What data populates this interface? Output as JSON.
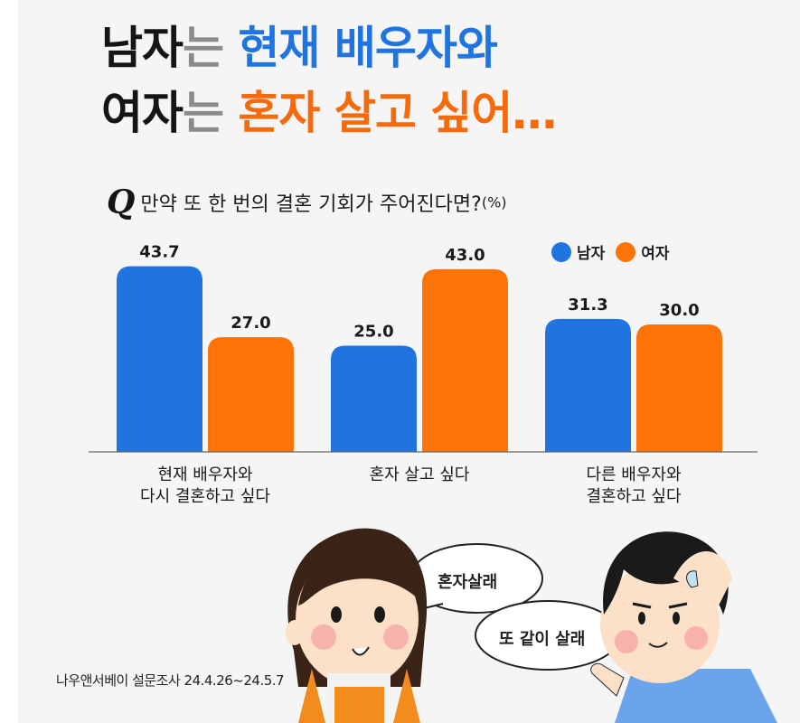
{
  "title": {
    "line1": {
      "part1": "남자",
      "part2": "는",
      "part3": "현재 배우자와"
    },
    "line2": {
      "part1": "여자",
      "part2": "는",
      "part3": "혼자 살고 싶어…"
    }
  },
  "question": {
    "mark": "Q",
    "text": "만약 또 한 번의 결혼 기회가 주어진다면?",
    "unit": "(%)"
  },
  "chart_data": {
    "type": "bar",
    "categories": [
      "현재 배우자와\n다시 결혼하고 싶다",
      "혼자 살고 싶다",
      "다른 배우자와\n결혼하고 싶다"
    ],
    "series": [
      {
        "name": "남자",
        "color": "#1f74e0",
        "values": [
          43.7,
          25.0,
          31.3
        ],
        "labels": [
          "43.7",
          "25.0",
          "31.3"
        ]
      },
      {
        "name": "여자",
        "color": "#fc7308",
        "values": [
          27.0,
          43.0,
          30.0
        ],
        "labels": [
          "27.0",
          "43.0",
          "30.0"
        ]
      }
    ],
    "ylim": [
      0,
      50
    ],
    "grid": false,
    "legend": "top-right"
  },
  "speech": {
    "bubble1": "혼자살래",
    "bubble2": "또 같이 살래"
  },
  "credit": "나우앤서베이 설문조사 24.4.26~24.5.7"
}
